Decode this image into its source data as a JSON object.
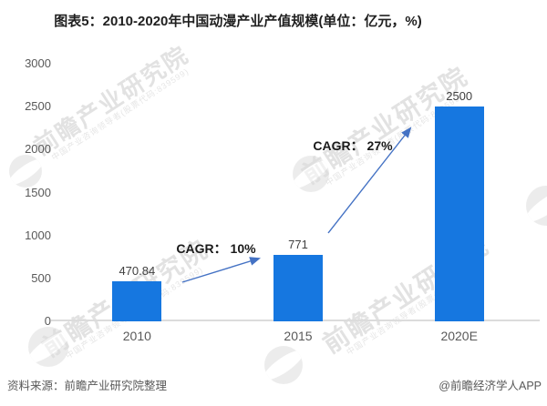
{
  "title": "图表5：2010-2020年中国动漫产业产值规模(单位：亿元，%)",
  "chart_data": {
    "type": "bar",
    "categories": [
      "2010",
      "2015",
      "2020E"
    ],
    "values": [
      470.84,
      771,
      2500
    ],
    "bar_labels": [
      "470.84",
      "771",
      "2500"
    ],
    "title": "图表5：2010-2020年中国动漫产业产值规模(单位：亿元，%)",
    "xlabel": "",
    "ylabel": "",
    "ylim": [
      0,
      3000
    ],
    "yticks": [
      0,
      500,
      1000,
      1500,
      2000,
      2500,
      3000
    ],
    "grid": false,
    "legend": null,
    "bar_color": "#1677e0",
    "annotations": [
      {
        "text": "CAGR： 10%",
        "from_category": "2010",
        "to_category": "2015"
      },
      {
        "text": "CAGR： 27%",
        "from_category": "2015",
        "to_category": "2020E"
      }
    ]
  },
  "colors": {
    "bar": "#1677e0",
    "arrow": "#4472c4",
    "axis_line": "#dcdcdc",
    "title_text": "#1f1f1f",
    "tick_text": "#595959"
  },
  "watermark": {
    "text": "前瞻产业研究院",
    "subtext": "中国产业咨询领导者(股票代码:839599)"
  },
  "footer": {
    "source": "资料来源：前瞻产业研究院整理",
    "brand": "@前瞻经济学人APP"
  }
}
